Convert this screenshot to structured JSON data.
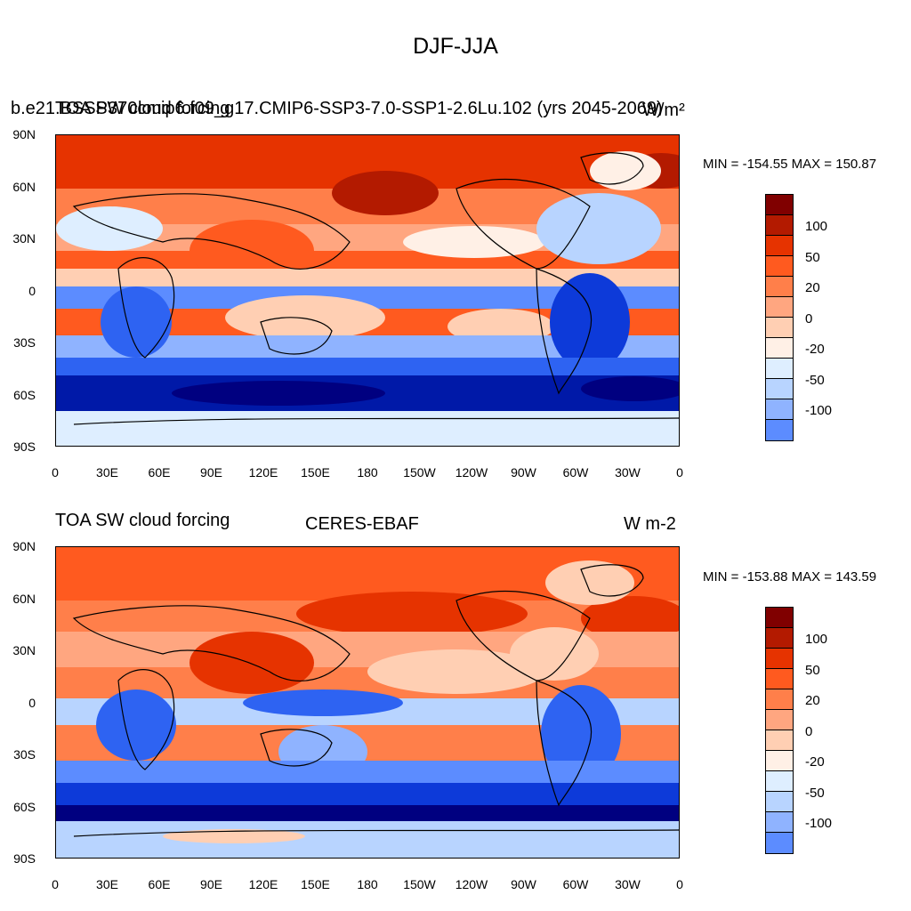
{
  "figure": {
    "title": "DJF-JJA"
  },
  "panels": [
    {
      "left_title": "TOA SW cloud forcing",
      "center_title": "b.e21.BSSP370cmip6.f09_g17.CMIP6-SSP3-7.0-SSP1-2.6Lu.102 (yrs 2045-2069)",
      "right_title": "W/m²",
      "minmax": "MIN = -154.55 MAX = 150.87"
    },
    {
      "left_title": "TOA SW cloud forcing",
      "center_title": "CERES-EBAF",
      "right_title": "W m-2",
      "minmax": "MIN = -153.88 MAX = 143.59"
    }
  ],
  "colorbar": {
    "colors": [
      "#800000",
      "#b31a00",
      "#e63300",
      "#ff5a1f",
      "#ff7f4a",
      "#ffa680",
      "#ffcfb3",
      "#fff0e6",
      "#deeeff",
      "#b8d4ff",
      "#8fb3ff",
      "#5c8cff",
      "#2e63f2",
      "#0d3ad9",
      "#0019a8",
      "#000080"
    ],
    "labels": [
      "100",
      "50",
      "20",
      "0",
      "-20",
      "-50",
      "-100"
    ]
  },
  "axes": {
    "lat_labels": [
      "90N",
      "60N",
      "30N",
      "0",
      "30S",
      "60S",
      "90S"
    ],
    "lon_labels": [
      "0",
      "30E",
      "60E",
      "90E",
      "120E",
      "150E",
      "180",
      "150W",
      "120W",
      "90W",
      "60W",
      "30W",
      "0"
    ]
  }
}
